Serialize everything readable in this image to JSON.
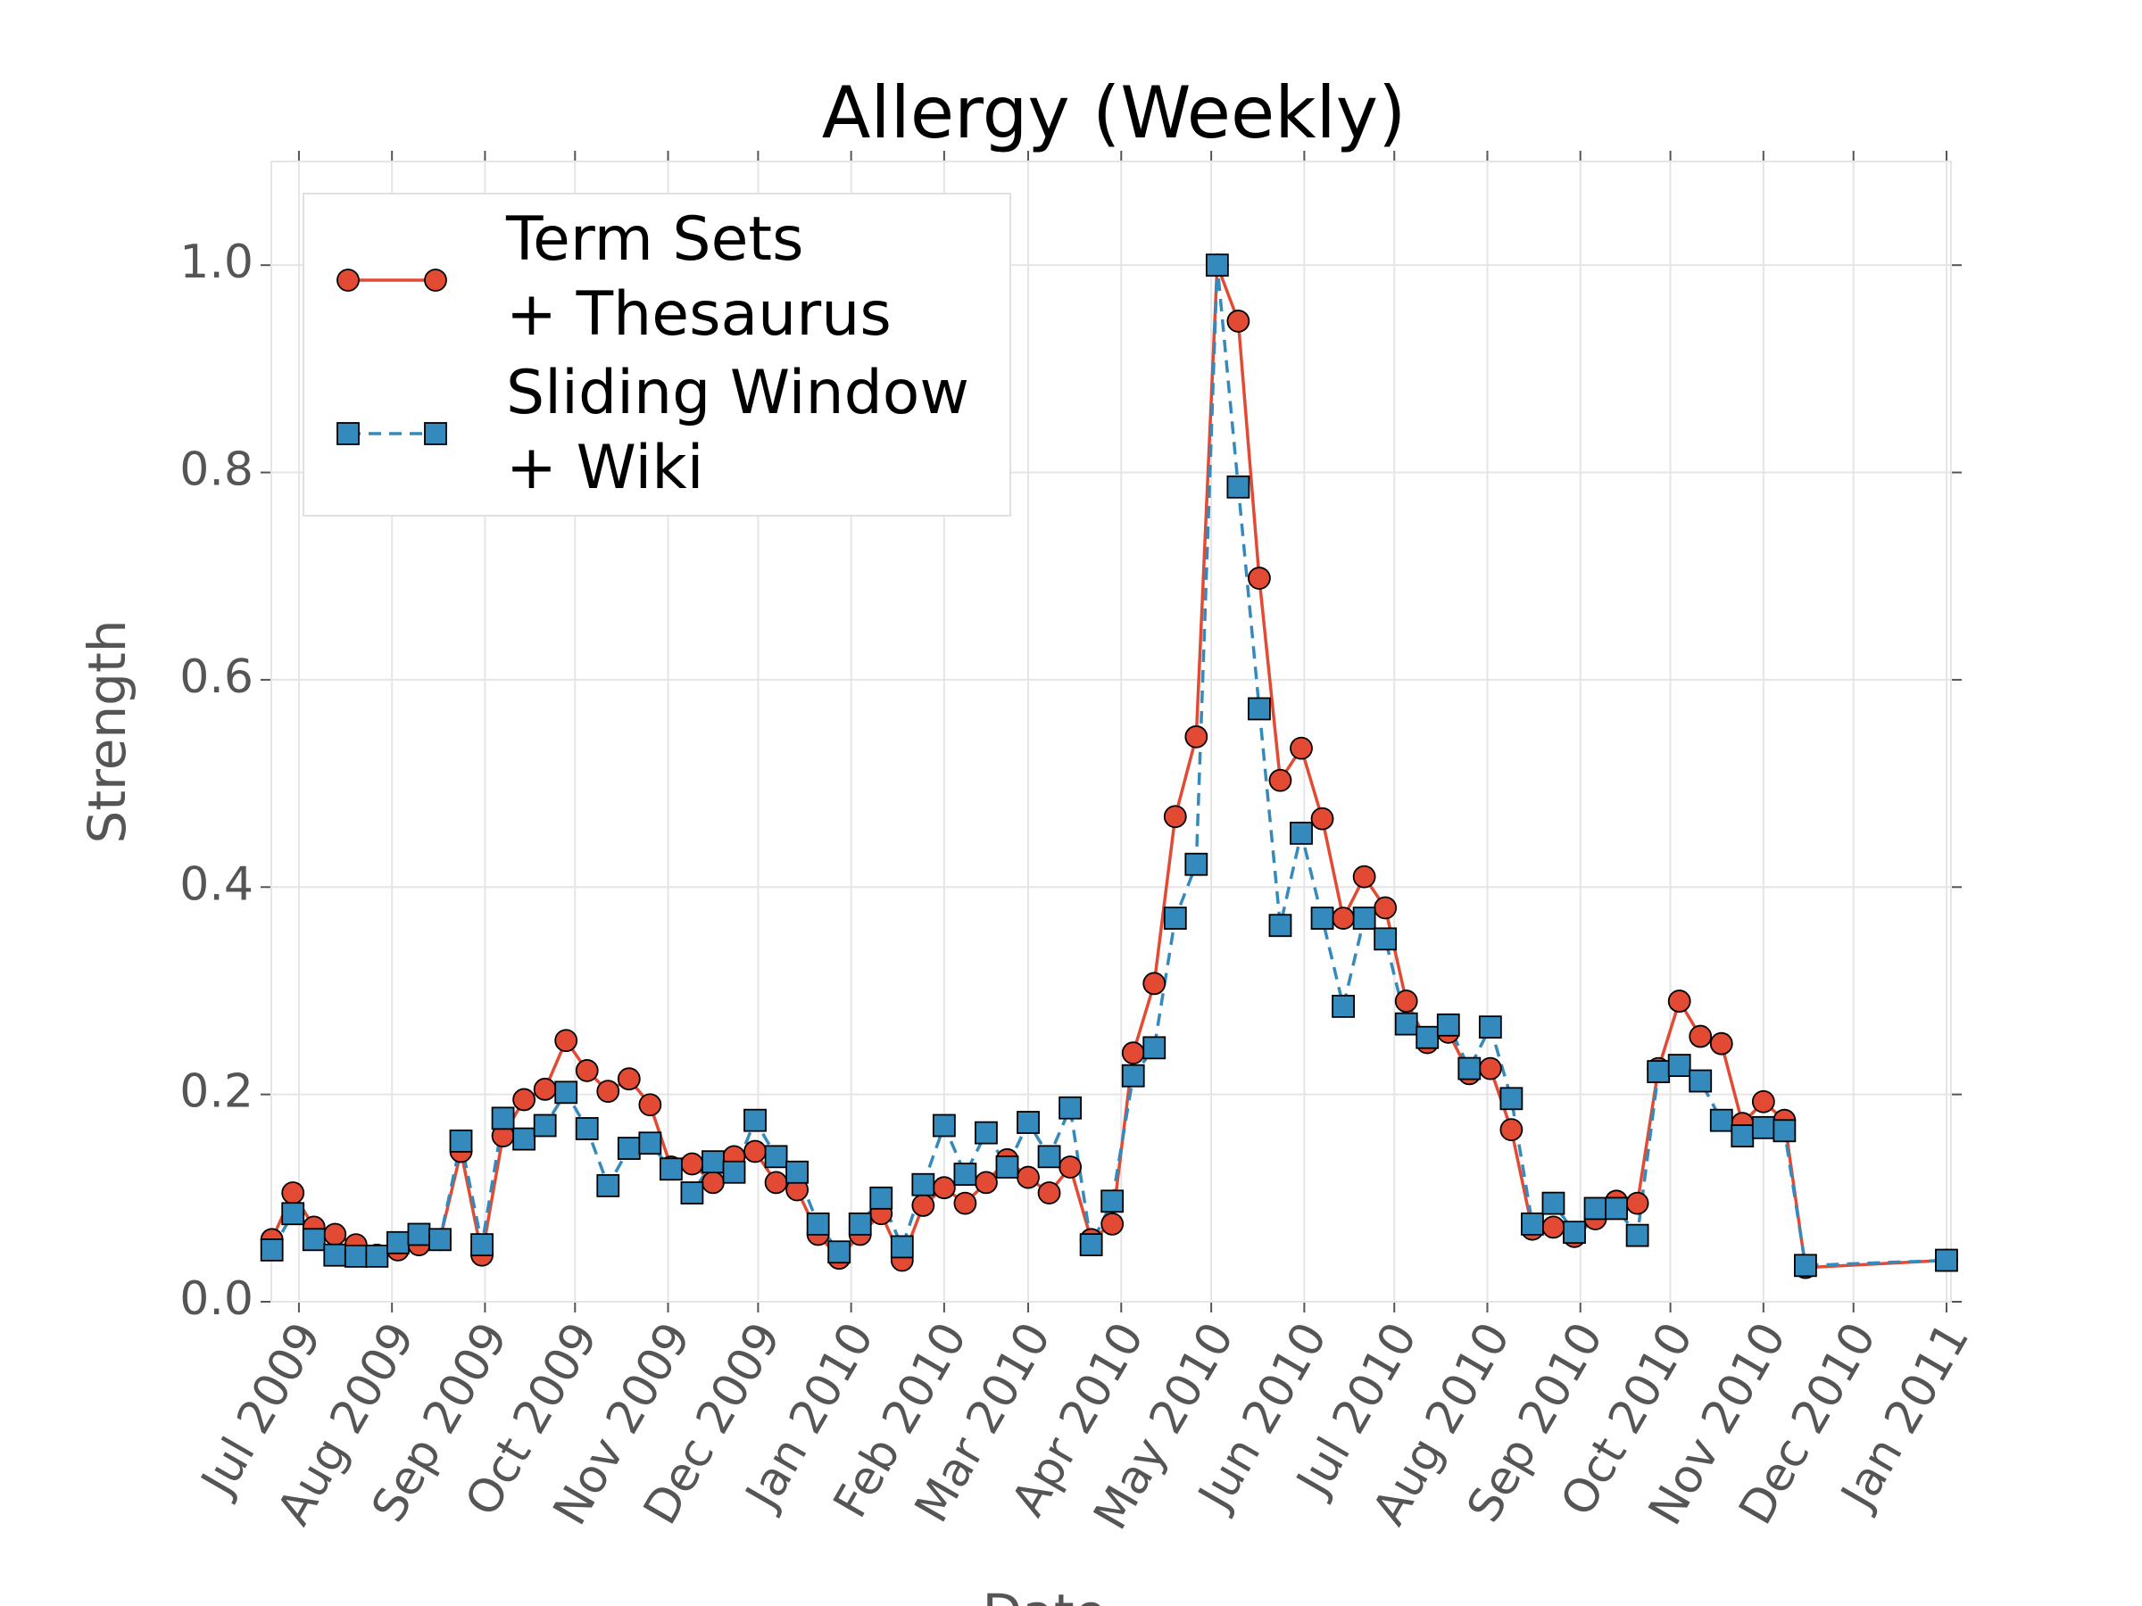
{
  "chart_data": {
    "type": "line",
    "title": "Allergy (Weekly)",
    "x_label": "Date",
    "y_label": "Strength",
    "x": [
      -9,
      -2,
      5,
      12,
      19,
      26,
      33,
      40,
      47,
      54,
      61,
      68,
      75,
      82,
      89,
      96,
      103,
      110,
      117,
      124,
      131,
      138,
      145,
      152,
      159,
      166,
      173,
      180,
      187,
      194,
      201,
      208,
      215,
      222,
      229,
      236,
      243,
      250,
      257,
      264,
      271,
      278,
      285,
      292,
      299,
      306,
      313,
      320,
      327,
      334,
      341,
      348,
      355,
      362,
      369,
      376,
      383,
      390,
      397,
      404,
      411,
      418,
      425,
      432,
      439,
      446,
      453,
      460,
      467,
      474,
      481,
      488,
      495,
      502,
      549
    ],
    "series": [
      {
        "name": "Term Sets\n+ Thesaurus",
        "color": "#e24a33",
        "marker": "circle",
        "dashed": false,
        "values": [
          0.06,
          0.105,
          0.072,
          0.065,
          0.055,
          0.045,
          0.05,
          0.055,
          0.06,
          0.145,
          0.045,
          0.16,
          0.195,
          0.205,
          0.252,
          0.223,
          0.203,
          0.215,
          0.19,
          0.13,
          0.133,
          0.115,
          0.14,
          0.145,
          0.115,
          0.108,
          0.065,
          0.042,
          0.065,
          0.085,
          0.04,
          0.093,
          0.11,
          0.095,
          0.115,
          0.137,
          0.12,
          0.105,
          0.13,
          0.06,
          0.075,
          0.24,
          0.307,
          0.468,
          0.545,
          1.0,
          0.946,
          0.698,
          0.503,
          0.534,
          0.466,
          0.37,
          0.41,
          0.38,
          0.29,
          0.25,
          0.26,
          0.22,
          0.225,
          0.166,
          0.07,
          0.072,
          0.063,
          0.08,
          0.097,
          0.095,
          0.225,
          0.29,
          0.256,
          0.249,
          0.172,
          0.193,
          0.175,
          0.033,
          0.04
        ]
      },
      {
        "name": "Sliding Window\n+ Wiki",
        "color": "#348abd",
        "marker": "square",
        "dashed": true,
        "values": [
          0.05,
          0.085,
          0.06,
          0.045,
          0.044,
          0.044,
          0.057,
          0.065,
          0.06,
          0.155,
          0.055,
          0.177,
          0.157,
          0.17,
          0.202,
          0.167,
          0.112,
          0.148,
          0.153,
          0.128,
          0.105,
          0.135,
          0.125,
          0.175,
          0.14,
          0.125,
          0.075,
          0.048,
          0.075,
          0.1,
          0.053,
          0.113,
          0.17,
          0.123,
          0.163,
          0.13,
          0.173,
          0.14,
          0.187,
          0.055,
          0.097,
          0.218,
          0.245,
          0.37,
          0.422,
          1.0,
          0.786,
          0.572,
          0.363,
          0.452,
          0.37,
          0.285,
          0.37,
          0.35,
          0.268,
          0.255,
          0.267,
          0.225,
          0.265,
          0.196,
          0.075,
          0.095,
          0.067,
          0.09,
          0.09,
          0.064,
          0.222,
          0.228,
          0.213,
          0.175,
          0.16,
          0.168,
          0.165,
          0.035,
          0.04
        ]
      }
    ],
    "xlim": [
      -9.2,
      550.5
    ],
    "xticks": [
      {
        "value": 0,
        "label": "Jul 2009"
      },
      {
        "value": 31,
        "label": "Aug 2009"
      },
      {
        "value": 62,
        "label": "Sep 2009"
      },
      {
        "value": 92,
        "label": "Oct 2009"
      },
      {
        "value": 123,
        "label": "Nov 2009"
      },
      {
        "value": 153,
        "label": "Dec 2009"
      },
      {
        "value": 184,
        "label": "Jan 2010"
      },
      {
        "value": 215,
        "label": "Feb 2010"
      },
      {
        "value": 243,
        "label": "Mar 2010"
      },
      {
        "value": 274,
        "label": "Apr 2010"
      },
      {
        "value": 304,
        "label": "May 2010"
      },
      {
        "value": 335,
        "label": "Jun 2010"
      },
      {
        "value": 365,
        "label": "Jul 2010"
      },
      {
        "value": 396,
        "label": "Aug 2010"
      },
      {
        "value": 427,
        "label": "Sep 2010"
      },
      {
        "value": 457,
        "label": "Oct 2010"
      },
      {
        "value": 488,
        "label": "Nov 2010"
      },
      {
        "value": 518,
        "label": "Dec 2010"
      },
      {
        "value": 549,
        "label": "Jan 2011"
      }
    ],
    "ylim": [
      0,
      1.1
    ],
    "yticks": [
      {
        "value": 0,
        "label": "0.0"
      },
      0.2,
      0.4,
      0.6,
      0.8,
      {
        "value": 1,
        "label": "1.0"
      }
    ],
    "grid": true,
    "legend": "upper left"
  }
}
